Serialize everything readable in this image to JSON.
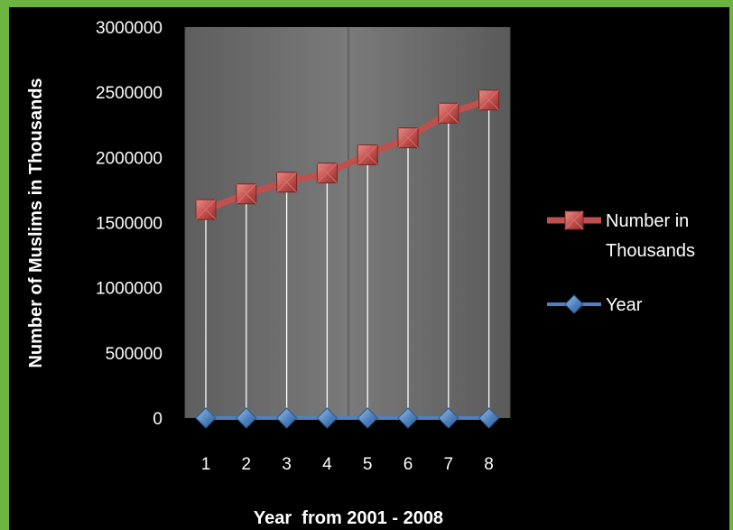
{
  "chart_data": {
    "type": "line",
    "title": "",
    "xlabel": "Year  from 2001 - 2008",
    "ylabel": "Number of Muslims in Thousands",
    "categories": [
      "1",
      "2",
      "3",
      "4",
      "5",
      "6",
      "7",
      "8"
    ],
    "ylim": [
      0,
      3000000
    ],
    "yticks": [
      "3000000",
      "2500000",
      "2000000",
      "1500000",
      "1000000",
      "500000",
      "0"
    ],
    "ytick_values": [
      3000000,
      2500000,
      2000000,
      1500000,
      1000000,
      500000,
      0
    ],
    "series": [
      {
        "name": "Number in Thousands",
        "legend_lines": [
          "Number in",
          "Thousands"
        ],
        "color": "#c0504d",
        "marker": "square",
        "values": [
          1600000,
          1720000,
          1810000,
          1880000,
          2020000,
          2150000,
          2340000,
          2440000
        ]
      },
      {
        "name": "Year",
        "legend_lines": [
          "Year"
        ],
        "color": "#4f81bd",
        "marker": "diamond",
        "values": [
          1,
          2,
          3,
          4,
          5,
          6,
          7,
          8
        ]
      }
    ],
    "grid": "vertical",
    "drop_lines": true,
    "legend_position": "right",
    "plot_background": "#6e6e6e",
    "page_background": "#000000",
    "frame_color": "#6db33f"
  }
}
